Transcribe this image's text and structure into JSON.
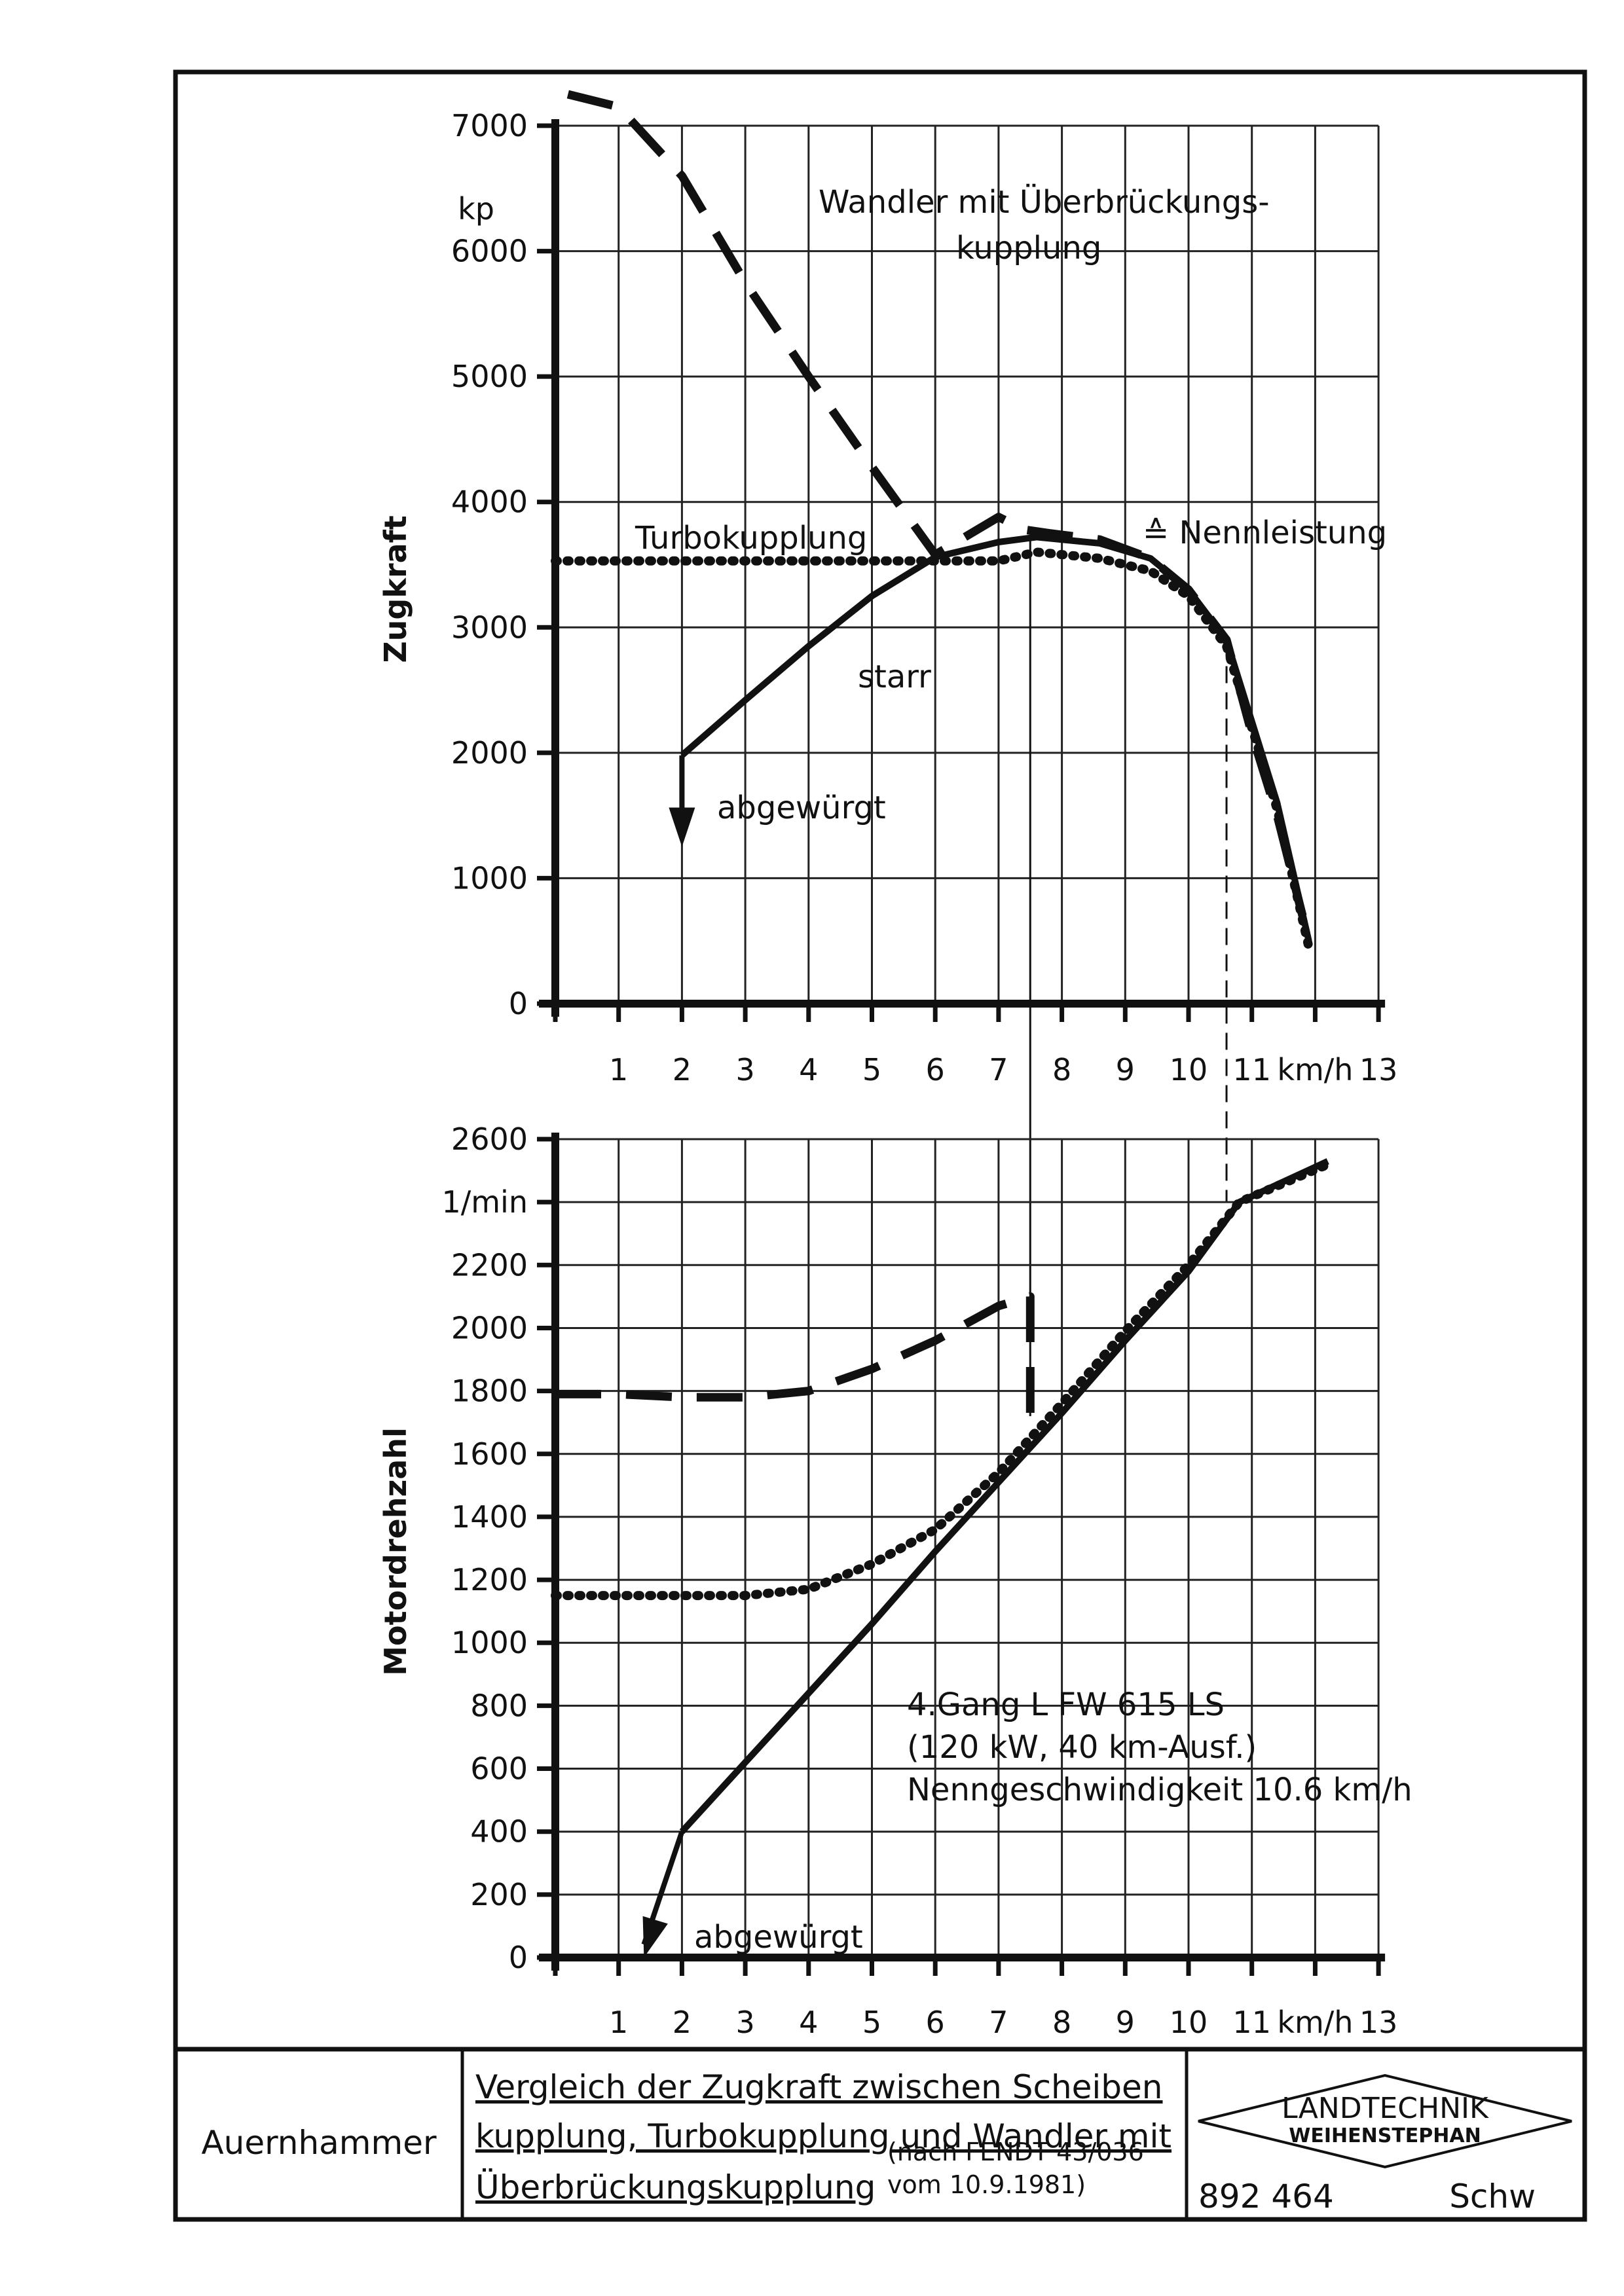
{
  "chart_data": [
    {
      "type": "line",
      "xlabel": "",
      "ylabel": "Zugkraft",
      "y_unit": "kp",
      "x_unit": "km/h",
      "xlim": [
        0,
        13
      ],
      "ylim": [
        0,
        7000
      ],
      "x_ticks": [
        "1",
        "2",
        "3",
        "4",
        "5",
        "6",
        "7",
        "8",
        "9",
        "10",
        "11",
        "km/h",
        "13"
      ],
      "y_ticks": [
        "0",
        "1000",
        "2000",
        "3000",
        "4000",
        "5000",
        "6000",
        "7000"
      ],
      "grid": true,
      "series": [
        {
          "name": "Wandler mit Überbrückungskupplung",
          "style": "dashed",
          "x": [
            0.2,
            1,
            2,
            3,
            4,
            5,
            6,
            7,
            7.4,
            7.8,
            8.6,
            9.4,
            10,
            10.6,
            11,
            11.4,
            11.8
          ],
          "y": [
            7250,
            7150,
            6600,
            5750,
            5000,
            4280,
            3580,
            3880,
            3780,
            3750,
            3700,
            3550,
            3300,
            2900,
            2150,
            1500,
            700
          ]
        },
        {
          "name": "Turbokupplung",
          "style": "dotted",
          "x": [
            0,
            1,
            2,
            3,
            4,
            5,
            6,
            7,
            7.6,
            8.6,
            9.4,
            10,
            10.6,
            11,
            11.4,
            11.9
          ],
          "y": [
            3530,
            3530,
            3530,
            3530,
            3530,
            3530,
            3530,
            3530,
            3600,
            3550,
            3450,
            3250,
            2850,
            2200,
            1550,
            450
          ]
        },
        {
          "name": "starr",
          "style": "solid",
          "x": [
            2,
            3,
            4,
            5,
            6,
            7,
            7.6,
            8.6,
            9.4,
            10,
            10.6,
            11,
            11.4,
            11.9
          ],
          "y": [
            1980,
            2420,
            2850,
            3250,
            3560,
            3680,
            3720,
            3670,
            3550,
            3300,
            2900,
            2250,
            1600,
            500
          ]
        }
      ],
      "annotations": [
        "Wandler mit Überbrückungs-",
        "kupplung",
        "Turbokupplung",
        "≙ Nennleistung",
        "starr",
        "abgewürgt"
      ]
    },
    {
      "type": "line",
      "xlabel": "",
      "ylabel": "Motordrehzahl",
      "y_unit": "1/min",
      "x_unit": "km/h",
      "xlim": [
        0,
        13
      ],
      "ylim": [
        0,
        2600
      ],
      "x_ticks": [
        "1",
        "2",
        "3",
        "4",
        "5",
        "6",
        "7",
        "8",
        "9",
        "10",
        "11",
        "km/h",
        "13"
      ],
      "y_ticks": [
        "0",
        "200",
        "400",
        "600",
        "800",
        "1000",
        "1200",
        "1400",
        "1600",
        "1800",
        "2000",
        "2200",
        "1/min",
        "2600"
      ],
      "grid": true,
      "series": [
        {
          "name": "Wandler mit Überbrückungskupplung",
          "style": "dashed",
          "x": [
            0,
            1,
            2,
            3,
            4,
            5,
            6,
            7,
            7.5,
            7.5
          ],
          "y": [
            1790,
            1790,
            1780,
            1780,
            1800,
            1870,
            1960,
            2070,
            2100,
            1720
          ]
        },
        {
          "name": "Turbokupplung",
          "style": "dotted",
          "x": [
            0,
            1,
            2,
            3,
            4,
            5,
            6,
            7,
            8,
            9,
            10,
            10.8,
            12.2
          ],
          "y": [
            1150,
            1150,
            1150,
            1150,
            1170,
            1250,
            1360,
            1540,
            1760,
            1990,
            2200,
            2400,
            2520
          ]
        },
        {
          "name": "starr",
          "style": "solid",
          "x": [
            2,
            3,
            4,
            5,
            6,
            7,
            8,
            9,
            10,
            10.8,
            12.2
          ],
          "y": [
            400,
            620,
            840,
            1060,
            1290,
            1510,
            1730,
            1960,
            2180,
            2400,
            2530
          ]
        }
      ],
      "annotations": [
        "4.Gang L FW 615 LS",
        "(120 kW, 40 km-Ausf.)",
        "Nenngeschwindigkeit 10.6 km/h",
        "abgewürgt"
      ]
    }
  ],
  "title_block": {
    "author": "Auernhammer",
    "title_line1": "Vergleich der Zugkraft zwischen Scheiben",
    "title_line2": "kupplung, Turbokupplung und Wandler mit",
    "title_line3": "Überbrückungskupplung",
    "source_line1": "(nach FENDT 43/036",
    "source_line2": "vom 10.9.1981)",
    "institute_line1": "LANDTECHNIK",
    "institute_line2": "WEIHENSTEPHAN",
    "drawing_number": "892 464",
    "drawer": "Schw"
  }
}
